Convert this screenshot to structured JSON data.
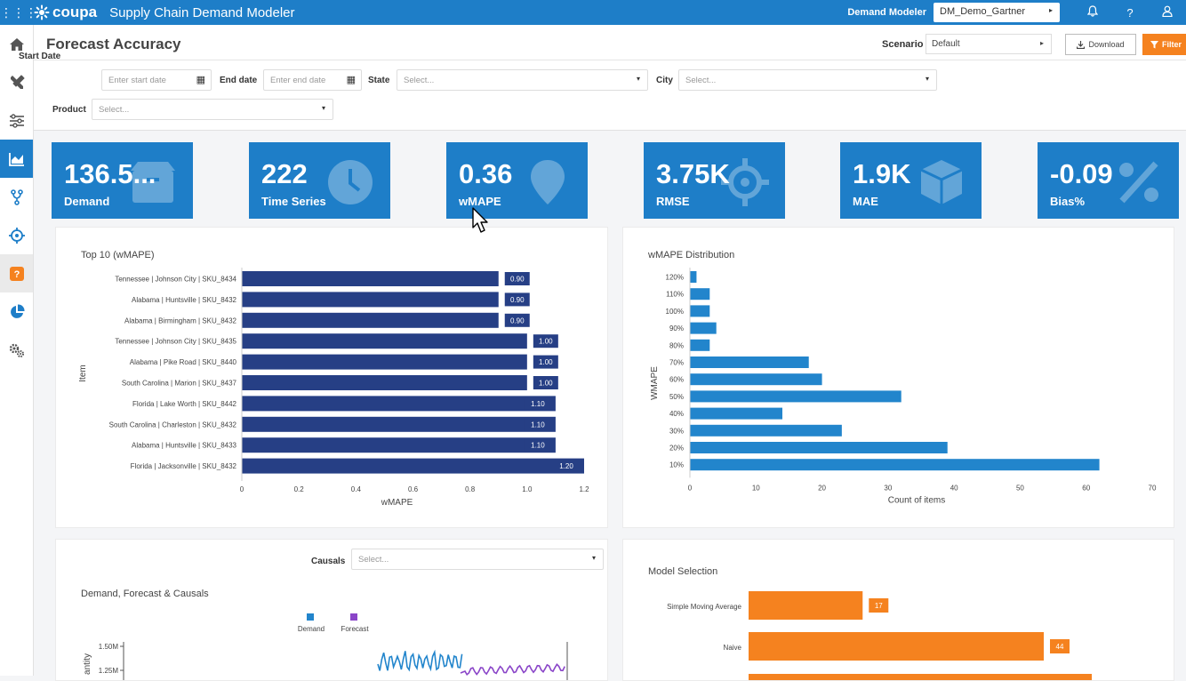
{
  "topbar": {
    "logo_text": "coupa",
    "app_title": "Supply Chain Demand Modeler",
    "modeler_label": "Demand Modeler",
    "modeler_value": "DM_Demo_Gartner"
  },
  "sidebar": {
    "items": [
      "home-icon",
      "tools-icon",
      "sliders-icon",
      "chart-icon",
      "branch-icon",
      "target-icon",
      "badge-icon",
      "pie-icon",
      "gears-icon"
    ]
  },
  "header": {
    "title": "Forecast Accuracy",
    "scenario_label": "Scenario",
    "scenario_value": "Default",
    "download_label": "Download",
    "filter_label": "Filter"
  },
  "filters": {
    "start_date_label": "Start Date",
    "start_date_placeholder": "Enter start date",
    "end_date_label": "End date",
    "end_date_placeholder": "Enter end date",
    "state_label": "State",
    "state_placeholder": "Select...",
    "city_label": "City",
    "city_placeholder": "Select...",
    "product_label": "Product",
    "product_placeholder": "Select..."
  },
  "kpis": [
    {
      "value": "136.5...",
      "label": "Demand",
      "icon": "box-icon"
    },
    {
      "value": "222",
      "label": "Time Series",
      "icon": "clock-icon"
    },
    {
      "value": "0.36",
      "label": "wMAPE",
      "icon": "pin-icon"
    },
    {
      "value": "3.75K",
      "label": "RMSE",
      "icon": "crosshair-icon"
    },
    {
      "value": "1.9K",
      "label": "MAE",
      "icon": "cube-icon"
    },
    {
      "value": "-0.09",
      "label": "Bias%",
      "icon": "percent-icon"
    }
  ],
  "causals": {
    "label": "Causals",
    "placeholder": "Select..."
  },
  "colors": {
    "primary": "#1e7ec8",
    "navy_bar": "#263f85",
    "dist_bar": "#2285cc",
    "orange": "#f5821f",
    "forecast": "#8a45c8"
  },
  "chart_data": [
    {
      "type": "bar",
      "orientation": "horizontal",
      "title": "Top 10 (wMAPE)",
      "xlabel": "wMAPE",
      "ylabel": "Item",
      "xlim": [
        0,
        1.2
      ],
      "xticks": [
        "0",
        "0.2",
        "0.4",
        "0.6",
        "0.8",
        "1.0",
        "1.2"
      ],
      "categories": [
        "Tennessee | Johnson City | SKU_8434",
        "Alabama | Huntsville | SKU_8432",
        "Alabama | Birmingham | SKU_8432",
        "Tennessee | Johnson City | SKU_8435",
        "Alabama | Pike Road | SKU_8440",
        "South Carolina | Marion | SKU_8437",
        "Florida | Lake Worth | SKU_8442",
        "South Carolina | Charleston | SKU_8432",
        "Alabama | Huntsville | SKU_8433",
        "Florida | Jacksonville | SKU_8432"
      ],
      "values": [
        0.9,
        0.9,
        0.9,
        1.0,
        1.0,
        1.0,
        1.1,
        1.1,
        1.1,
        1.2
      ],
      "labels": [
        "0.90",
        "0.90",
        "0.90",
        "1.00",
        "1.00",
        "1.00",
        "1.10",
        "1.10",
        "1.10",
        "1.20"
      ]
    },
    {
      "type": "bar",
      "orientation": "horizontal",
      "title": "wMAPE Distribution",
      "xlabel": "Count of items",
      "ylabel": "WMAPE",
      "xlim": [
        0,
        70
      ],
      "xticks": [
        "0",
        "10",
        "20",
        "30",
        "40",
        "50",
        "60",
        "70"
      ],
      "categories": [
        "120%",
        "110%",
        "100%",
        "90%",
        "80%",
        "70%",
        "60%",
        "50%",
        "40%",
        "30%",
        "20%",
        "10%"
      ],
      "values": [
        1,
        3,
        3,
        4,
        3,
        18,
        20,
        32,
        14,
        23,
        39,
        62
      ]
    },
    {
      "type": "line",
      "title": "Demand, Forecast & Causals",
      "ylabel": "antity",
      "yticks": [
        "1.50M",
        "1.25M"
      ],
      "legend": "top",
      "series": [
        {
          "name": "Demand"
        },
        {
          "name": "Forecast"
        }
      ]
    },
    {
      "type": "bar",
      "orientation": "horizontal",
      "title": "Model Selection",
      "categories": [
        "Simple Moving Average",
        "Naive"
      ],
      "values": [
        17,
        44
      ],
      "labels": [
        "17",
        "44"
      ]
    }
  ]
}
